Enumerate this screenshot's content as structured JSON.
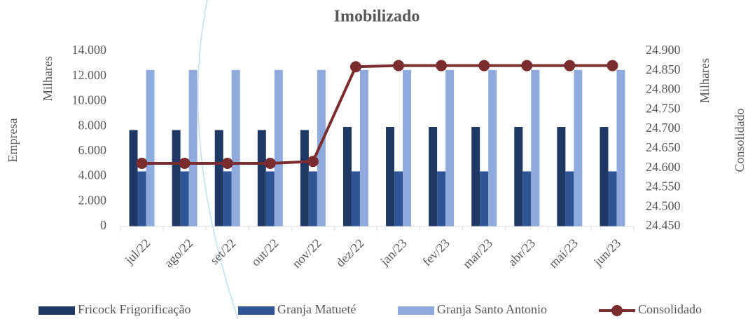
{
  "chart_data": {
    "type": "bar_line",
    "title": "Imobilizado",
    "y_label": "Empresa",
    "y_unit": "Milhares",
    "y2_label": "Consolidado",
    "y2_unit": "Milhares",
    "categories": [
      "jul/22",
      "ago/22",
      "set/22",
      "out/22",
      "nov/22",
      "dez/22",
      "jan/23",
      "fev/23",
      "mar/23",
      "abr/23",
      "mai/23",
      "jun/23"
    ],
    "series": [
      {
        "name": "Fricock Frigorificação",
        "type": "bar",
        "color": "#1f3864",
        "values": [
          7700,
          7700,
          7700,
          7700,
          7700,
          7950,
          7950,
          7950,
          7950,
          7950,
          7950,
          7950
        ]
      },
      {
        "name": "Granja Matueté",
        "type": "bar",
        "color": "#2f5597",
        "values": [
          4400,
          4400,
          4400,
          4400,
          4400,
          4400,
          4400,
          4400,
          4400,
          4400,
          4400,
          4400
        ]
      },
      {
        "name": "Granja Santo Antonio",
        "type": "bar",
        "color": "#8faadc",
        "values": [
          12500,
          12500,
          12500,
          12500,
          12500,
          12500,
          12500,
          12500,
          12500,
          12500,
          12500,
          12500
        ]
      },
      {
        "name": "Consolidado",
        "type": "line",
        "axis": "y2",
        "color": "#7b2c2f",
        "values": [
          24612,
          24612,
          24612,
          24612,
          24617,
          24860,
          24863,
          24863,
          24863,
          24863,
          24863,
          24863
        ]
      }
    ],
    "ylim": [
      0,
      14000
    ],
    "yticks": [
      0,
      {
        "value": 2000,
        "label": "2.000"
      },
      {
        "value": 4000,
        "label": "4.000"
      },
      {
        "value": 6000,
        "label": "6.000"
      },
      {
        "value": 8000,
        "label": "8.000"
      },
      {
        "value": 10000,
        "label": "10.000"
      },
      {
        "value": 12000,
        "label": "12.000"
      },
      {
        "value": 14000,
        "label": "14.000"
      }
    ],
    "y2lim": [
      24450,
      24900
    ],
    "y2ticks": [
      {
        "value": 24450,
        "label": "24.450"
      },
      {
        "value": 24500,
        "label": "24.500"
      },
      {
        "value": 24550,
        "label": "24.550"
      },
      {
        "value": 24600,
        "label": "24.600"
      },
      {
        "value": 24650,
        "label": "24.650"
      },
      {
        "value": 24700,
        "label": "24.700"
      },
      {
        "value": 24750,
        "label": "24.750"
      },
      {
        "value": 24800,
        "label": "24.800"
      },
      {
        "value": 24850,
        "label": "24.850"
      },
      {
        "value": 24900,
        "label": "24.900"
      }
    ],
    "grid": false,
    "legend": "bottom"
  }
}
